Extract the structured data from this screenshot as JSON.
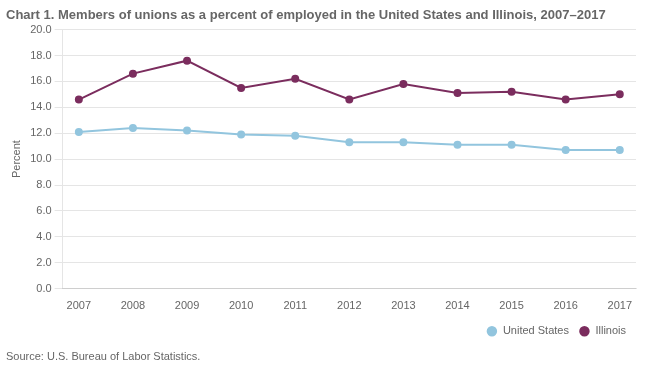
{
  "chart_data": {
    "type": "line",
    "title": "Chart 1. Members of unions as a percent of employed in the United States and Illinois, 2007–2017",
    "ylabel": "Percent",
    "annotations": [
      "Source: U.S. Bureau of Labor Statistics."
    ],
    "x": [
      2007,
      2008,
      2009,
      2010,
      2011,
      2012,
      2013,
      2014,
      2015,
      2016,
      2017
    ],
    "series": [
      {
        "name": "United States",
        "color": "#92c5de",
        "marker": "circle",
        "values": [
          12.1,
          12.4,
          12.2,
          11.9,
          11.8,
          11.3,
          11.3,
          11.1,
          11.1,
          10.7,
          10.7
        ]
      },
      {
        "name": "Illinois",
        "color": "#7b2d5e",
        "marker": "circle",
        "values": [
          14.6,
          16.6,
          17.6,
          15.5,
          16.2,
          14.6,
          15.8,
          15.1,
          15.2,
          14.6,
          15.0
        ]
      }
    ],
    "xlim": [
      2006.7,
      2017.3
    ],
    "xticks": [
      2007,
      2008,
      2009,
      2010,
      2011,
      2012,
      2013,
      2014,
      2015,
      2016,
      2017
    ],
    "ylim": [
      0,
      20
    ],
    "yticks": [
      {
        "value": 0,
        "label": "0.0"
      },
      {
        "value": 2,
        "label": "2.0"
      },
      {
        "value": 4,
        "label": "4.0"
      },
      {
        "value": 6,
        "label": "6.0"
      },
      {
        "value": 8,
        "label": "8.0"
      },
      {
        "value": 10,
        "label": "10.0"
      },
      {
        "value": 12,
        "label": "12.0"
      },
      {
        "value": 14,
        "label": "14.0"
      },
      {
        "value": 16,
        "label": "16.0"
      },
      {
        "value": 18,
        "label": "18.0"
      },
      {
        "value": 20,
        "label": "20.0"
      }
    ],
    "grid": true,
    "legend": "lower right"
  }
}
